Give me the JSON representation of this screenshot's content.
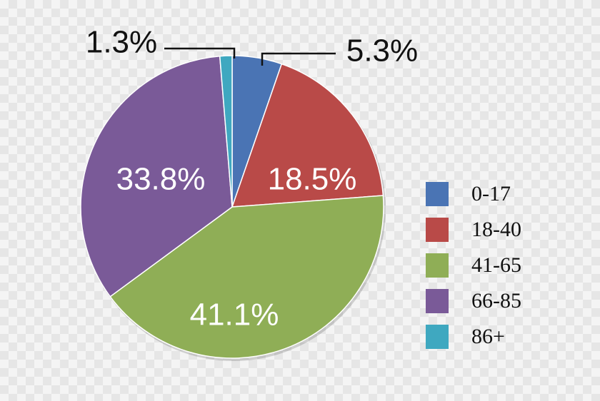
{
  "chart_data": {
    "type": "pie",
    "categories": [
      "0-17",
      "18-40",
      "41-65",
      "66-85",
      "86+"
    ],
    "values": [
      5.3,
      18.5,
      41.1,
      33.8,
      1.3
    ],
    "value_labels": [
      "5.3%",
      "18.5%",
      "41.1%",
      "33.8%",
      "1.3%"
    ],
    "colors": [
      "#4a74b4",
      "#b94a48",
      "#8fae56",
      "#7a5a98",
      "#3fa8c0"
    ],
    "legend": "right"
  }
}
